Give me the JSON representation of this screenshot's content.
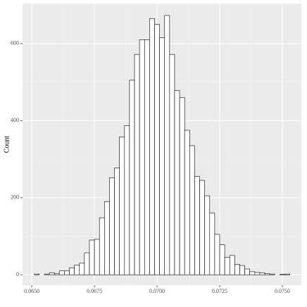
{
  "chart_data": {
    "type": "histogram",
    "y_label": "Count",
    "bins": [
      0.0651,
      0.0653,
      0.0655,
      0.0657,
      0.0659,
      0.0661,
      0.0663,
      0.0665,
      0.0667,
      0.0669,
      0.0671,
      0.0673,
      0.0675,
      0.0677,
      0.0679,
      0.0681,
      0.0683,
      0.0685,
      0.0687,
      0.0689,
      0.0691,
      0.0693,
      0.0695,
      0.0697,
      0.0699,
      0.0701,
      0.0703,
      0.0705,
      0.0707,
      0.0709,
      0.0711,
      0.0713,
      0.0715,
      0.0717,
      0.0719,
      0.0721,
      0.0723,
      0.0725,
      0.0727,
      0.0729,
      0.0731,
      0.0733,
      0.0735,
      0.0737,
      0.0739,
      0.0741,
      0.0743,
      0.0745,
      0.0747,
      0.0749,
      0.0751,
      0.0753
    ],
    "values": [
      2,
      0,
      2,
      5,
      3,
      10,
      10,
      18,
      25,
      30,
      57,
      90,
      92,
      148,
      190,
      252,
      277,
      358,
      387,
      505,
      572,
      610,
      610,
      665,
      650,
      615,
      673,
      572,
      478,
      460,
      375,
      335,
      255,
      245,
      205,
      160,
      105,
      78,
      45,
      50,
      27,
      24,
      15,
      8,
      6,
      5,
      3,
      2,
      0,
      1,
      2
    ],
    "color": "#ffffff",
    "edge_color": "#000000",
    "xlim": [
      0.06463,
      0.07576
    ],
    "ylim": [
      -27,
      704
    ],
    "xticks": [
      {
        "value": 0.065,
        "label": "0.0650"
      },
      {
        "value": 0.0675,
        "label": "0.0675"
      },
      {
        "value": 0.07,
        "label": "0.0700"
      },
      {
        "value": 0.0725,
        "label": "0.0725"
      },
      {
        "value": 0.075,
        "label": "0.0750"
      }
    ],
    "yticks": [
      0,
      200,
      400,
      600
    ],
    "grid": true
  }
}
